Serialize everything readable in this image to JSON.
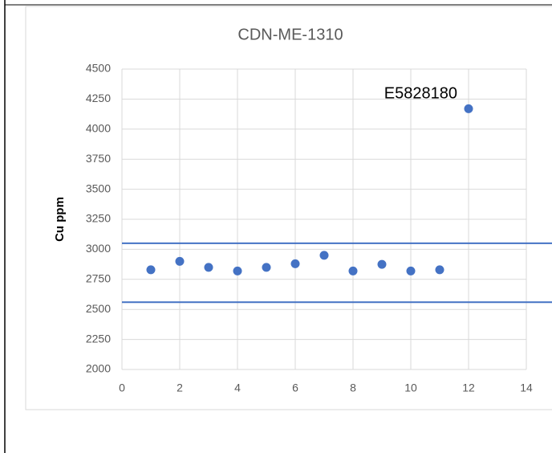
{
  "chart_data": {
    "type": "scatter",
    "title": "CDN-ME-1310",
    "y_label": "Cu ppm",
    "x": [
      1,
      2,
      3,
      4,
      5,
      6,
      7,
      8,
      9,
      10,
      11,
      12
    ],
    "values": [
      2830,
      2900,
      2850,
      2820,
      2850,
      2880,
      2950,
      2820,
      2875,
      2820,
      2830,
      4170
    ],
    "color": "#4472c4",
    "xlim": [
      0,
      14
    ],
    "xticks": [
      0,
      2,
      4,
      6,
      8,
      10,
      12,
      14
    ],
    "ylim": [
      2000,
      4500
    ],
    "yticks": [
      2000,
      2250,
      2500,
      2750,
      3000,
      3250,
      3500,
      3750,
      4000,
      4250,
      4500
    ],
    "grid": true,
    "reference_lines": [
      3050,
      2560
    ],
    "annotation": {
      "text": "E5828180",
      "x": 12,
      "y": 4170
    }
  }
}
